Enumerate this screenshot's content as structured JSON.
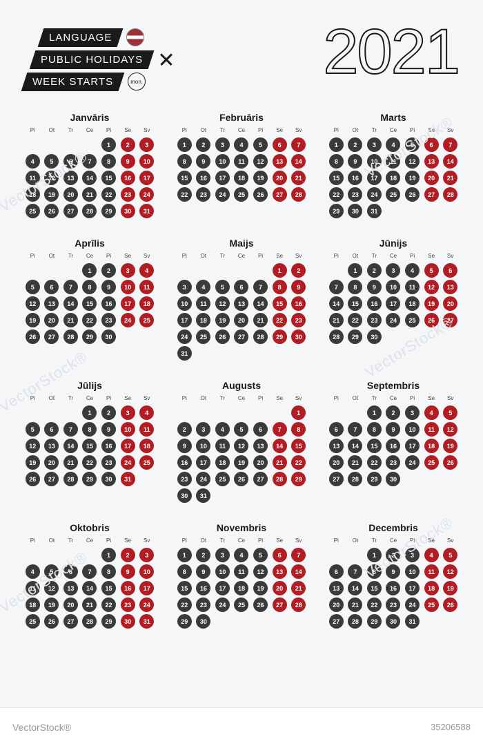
{
  "colors": {
    "page_bg": "#f4f6f8",
    "bar_bg": "#1a1a1a",
    "bar_text": "#ffffff",
    "weekday_dot": "#3a3a3a",
    "weekend_dot": "#b11d23",
    "day_text": "#ffffff",
    "year_outline": "#1a1a1a",
    "footer_bg": "#ffffff",
    "footer_text": "#93979c"
  },
  "header": {
    "rows": [
      {
        "label": "LANGUAGE",
        "icon": "flag-latvia"
      },
      {
        "label": "PUBLIC HOLIDAYS",
        "icon": "x"
      },
      {
        "label": "WEEK STARTS",
        "icon": "mon"
      }
    ],
    "mon_label": "mon.",
    "year": "2021"
  },
  "dows": [
    "Pi",
    "Ot",
    "Tr",
    "Ce",
    "Pi",
    "Se",
    "Sv"
  ],
  "months": [
    {
      "name": "Janvāris",
      "start": 4,
      "days": 31
    },
    {
      "name": "Februāris",
      "start": 0,
      "days": 28
    },
    {
      "name": "Marts",
      "start": 0,
      "days": 31
    },
    {
      "name": "Aprīlis",
      "start": 3,
      "days": 30
    },
    {
      "name": "Maijs",
      "start": 5,
      "days": 31
    },
    {
      "name": "Jūnijs",
      "start": 1,
      "days": 30
    },
    {
      "name": "Jūlijs",
      "start": 3,
      "days": 31
    },
    {
      "name": "Augusts",
      "start": 6,
      "days": 31
    },
    {
      "name": "Septembris",
      "start": 2,
      "days": 30
    },
    {
      "name": "Oktobris",
      "start": 4,
      "days": 31
    },
    {
      "name": "Novembris",
      "start": 0,
      "days": 30
    },
    {
      "name": "Decembris",
      "start": 2,
      "days": 31
    }
  ],
  "footer": {
    "brand": "VectorStock®",
    "id": "35206588"
  },
  "watermark_text": "VectorStock®"
}
